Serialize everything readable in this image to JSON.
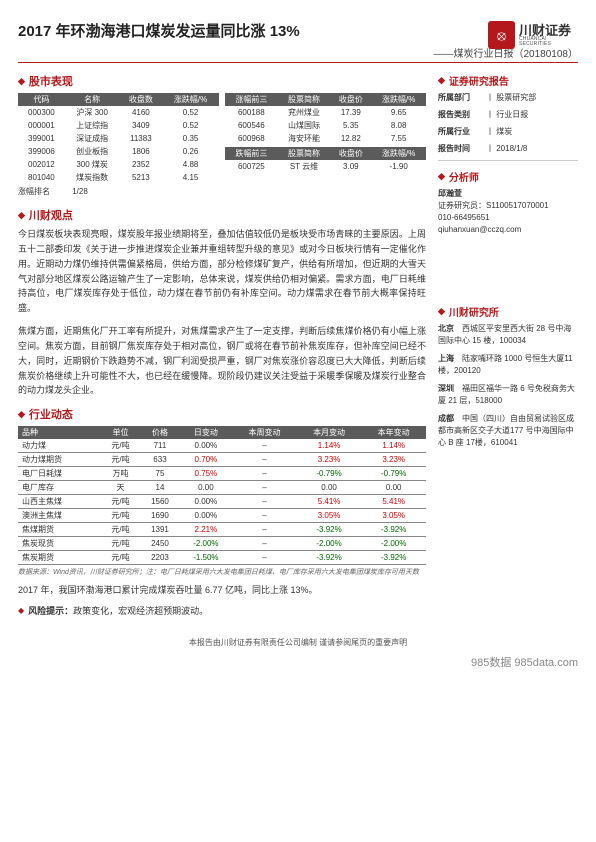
{
  "title": "2017 年环渤海港口煤炭发运量同比涨 13%",
  "subtitle": "——煤炭行业日报（20180108）",
  "logo": {
    "brand": "川财证券",
    "brand_en": "CHUANCAI SECURITIES"
  },
  "sec_stock": "股市表现",
  "stock_left": {
    "headers": [
      "代码",
      "名称",
      "收盘数",
      "涨跌幅/%"
    ],
    "rows": [
      [
        "000300",
        "沪深 300",
        "4160",
        "0.52"
      ],
      [
        "000001",
        "上证综指",
        "3409",
        "0.52"
      ],
      [
        "399001",
        "深证成指",
        "11383",
        "0.35"
      ],
      [
        "399006",
        "创业板指",
        "1806",
        "0.26"
      ],
      [
        "002012",
        "300 煤炭",
        "2352",
        "4.88"
      ],
      [
        "801040",
        "煤炭指数",
        "5213",
        "4.15"
      ]
    ],
    "rank_lbl": "涨幅排名",
    "rank_val": "1/28"
  },
  "stock_top": {
    "h": [
      "涨幅前三",
      "股票简称",
      "收盘价",
      "涨跌幅/%"
    ],
    "rows": [
      [
        "600188",
        "兖州煤业",
        "17.39",
        "9.65"
      ],
      [
        "600546",
        "山煤国际",
        "5.35",
        "8.08"
      ],
      [
        "600968",
        "海安环能",
        "12.82",
        "7.55"
      ]
    ]
  },
  "stock_bot": {
    "h": [
      "跌幅前三",
      "股票简称",
      "收盘价",
      "涨跌幅/%"
    ],
    "rows": [
      [
        "600725",
        "ST 云维",
        "3.09",
        "-1.90"
      ]
    ]
  },
  "sec_view": "川财观点",
  "view_p1": "今日煤炭板块表现亮眼，煤炭股年报业绩期将至，叠加估值较低仍是板块受市场青睐的主要原因。上周五十二部委印发《关于进一步推进煤炭企业兼并重组转型升级的意见》或对今日板块行情有一定催化作用。近期动力煤仍维持供需偏紧格局，供给方面，部分检修煤矿复产，供给有所增加，但近期的大雪天气对部分地区煤炭公路运输产生了一定影响，总体来说，煤炭供给仍相对偏紧。需求方面，电厂日耗维持高位，电厂煤炭库存处于低位，动力煤在春节前仍有补库空间。动力煤需求在春节前大概率保持旺盛。",
  "view_p2": "焦煤方面，近期焦化厂开工率有所提升，对焦煤需求产生了一定支撑，判断后续焦煤价格仍有小幅上涨空间。焦炭方面，目前钢厂焦炭库存处于相对高位，钢厂或将在春节前补焦炭库存，但补库空间已经不大，同时，近期钢价下跌趋势不减，钢厂利润受损严重，钢厂对焦炭涨价容忍度已大大降低，判断后续焦炭价格继续上升可能性不大，也已经在缓慢降。现阶段仍建议关注受益于采暖季保暖及煤炭行业整合的动力煤龙头企业。",
  "sec_dyn": "行业动态",
  "dyn_headers": [
    "品种",
    "单位",
    "价格",
    "日变动",
    "本周变动",
    "本月变动",
    "本年变动"
  ],
  "dyn_rows": [
    {
      "c": [
        "动力煤",
        "元/吨",
        "711",
        "0.00%",
        "–",
        "1.14%",
        "1.14%"
      ],
      "cls": [
        "",
        "",
        "",
        "",
        "",
        "red",
        "red"
      ]
    },
    {
      "c": [
        "动力煤期货",
        "元/吨",
        "633",
        "0.70%",
        "–",
        "3.23%",
        "3.23%"
      ],
      "cls": [
        "",
        "",
        "",
        "red",
        "",
        "red",
        "red"
      ]
    },
    {
      "c": [
        "电厂日耗煤",
        "万吨",
        "75",
        "0.75%",
        "–",
        "-0.79%",
        "-0.79%"
      ],
      "cls": [
        "",
        "",
        "",
        "red",
        "",
        "green",
        "green"
      ]
    },
    {
      "c": [
        "电厂库存",
        "天",
        "14",
        "0.00",
        "–",
        "0.00",
        "0.00"
      ],
      "cls": [
        "",
        "",
        "",
        "",
        "",
        "",
        ""
      ]
    },
    {
      "c": [
        "山西主焦煤",
        "元/吨",
        "1560",
        "0.00%",
        "–",
        "5.41%",
        "5.41%"
      ],
      "cls": [
        "",
        "",
        "",
        "",
        "",
        "red",
        "red"
      ]
    },
    {
      "c": [
        "澳洲主焦煤",
        "元/吨",
        "1690",
        "0.00%",
        "–",
        "3.05%",
        "3.05%"
      ],
      "cls": [
        "",
        "",
        "",
        "",
        "",
        "red",
        "red"
      ]
    },
    {
      "c": [
        "焦煤期货",
        "元/吨",
        "1391",
        "2.21%",
        "–",
        "-3.92%",
        "-3.92%"
      ],
      "cls": [
        "",
        "",
        "",
        "red",
        "",
        "green",
        "green"
      ]
    },
    {
      "c": [
        "焦炭现货",
        "元/吨",
        "2450",
        "-2.00%",
        "–",
        "-2.00%",
        "-2.00%"
      ],
      "cls": [
        "",
        "",
        "",
        "green",
        "",
        "green",
        "green"
      ]
    },
    {
      "c": [
        "焦炭期货",
        "元/吨",
        "2203",
        "-1.50%",
        "–",
        "-3.92%",
        "-3.92%"
      ],
      "cls": [
        "",
        "",
        "",
        "green",
        "",
        "green",
        "green"
      ]
    }
  ],
  "dyn_src": "数据来源：Wind资讯，川财证券研究所；注：电厂日耗煤采用六大发电集团日耗煤、电厂库存采用六大发电集团煤炭库存可用天数",
  "summary": "2017 年，我国环渤海港口累计完成煤炭吞吐量 6.77 亿吨，同比上涨 13%。",
  "risk_h": "风险提示：",
  "risk_txt": "政策变化，宏观经济超预期波动。",
  "right": {
    "sec_report": "证券研究报告",
    "rows": [
      {
        "lbl": "所属部门",
        "val": "丨 股票研究部"
      },
      {
        "lbl": "报告类别",
        "val": "丨 行业日报"
      },
      {
        "lbl": "所属行业",
        "val": "丨 煤炭"
      },
      {
        "lbl": "报告时间",
        "val": "丨 2018/1/8"
      }
    ],
    "sec_analyst": "分析师",
    "analyst_name": "邱瀚萱",
    "analyst_code": "证券研究员：S1100517070001",
    "analyst_tel": "010-66495651",
    "analyst_mail": "qiuhanxuan@cczq.com",
    "sec_inst": "川财研究所",
    "locs": [
      {
        "city": "北京",
        "addr": "西城区平安里西大街 28 号中海国际中心 15 楼，100034"
      },
      {
        "city": "上海",
        "addr": "陆家嘴环路 1000 号恒生大厦11 楼，200120"
      },
      {
        "city": "深圳",
        "addr": "福田区福华一路 6 号免税商务大厦 21 层，518000"
      },
      {
        "city": "成都",
        "addr": "中国（四川）自由贸易试验区成都市高新区交子大道177 号中海国际中心 B 座 17楼，610041"
      }
    ]
  },
  "footer": "本报告由川财证券有限责任公司编制  谨请参阅尾页的重要声明",
  "watermark": "985数据 985data.com"
}
